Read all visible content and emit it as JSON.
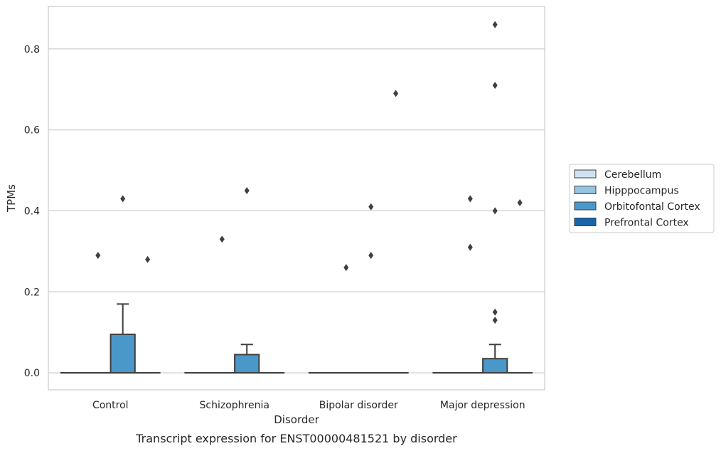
{
  "chart_data": {
    "type": "box",
    "title": "",
    "caption": "Transcript expression for ENST00000481521 by disorder",
    "xlabel": "Disorder",
    "ylabel": "TPMs",
    "ylim": [
      -0.042,
      0.905
    ],
    "yticks": [
      0.0,
      0.2,
      0.4,
      0.6,
      0.8
    ],
    "ytick_labels": [
      "0.0",
      "0.2",
      "0.4",
      "0.6",
      "0.8"
    ],
    "grid": "horizontal",
    "legend_position": "right",
    "categories": [
      "Control",
      "Schizophrenia",
      "Bipolar disorder",
      "Major depression"
    ],
    "series": [
      {
        "name": "Cerebellum",
        "color": "#d0e1f2",
        "boxes": [
          {
            "q1": 0,
            "median": 0,
            "q3": 0,
            "whislo": 0,
            "whishi": 0,
            "fliers": []
          },
          {
            "q1": 0,
            "median": 0,
            "q3": 0,
            "whislo": 0,
            "whishi": 0,
            "fliers": []
          },
          {
            "q1": 0,
            "median": 0,
            "q3": 0,
            "whislo": 0,
            "whishi": 0,
            "fliers": []
          },
          {
            "q1": 0,
            "median": 0,
            "q3": 0,
            "whislo": 0,
            "whishi": 0,
            "fliers": []
          }
        ]
      },
      {
        "name": "Hipppocampus",
        "color": "#94c4df",
        "boxes": [
          {
            "q1": 0,
            "median": 0,
            "q3": 0,
            "whislo": 0,
            "whishi": 0,
            "fliers": [
              0.29
            ]
          },
          {
            "q1": 0,
            "median": 0,
            "q3": 0,
            "whislo": 0,
            "whishi": 0,
            "fliers": [
              0.33
            ]
          },
          {
            "q1": 0,
            "median": 0,
            "q3": 0,
            "whislo": 0,
            "whishi": 0,
            "fliers": [
              0.26
            ]
          },
          {
            "q1": 0,
            "median": 0,
            "q3": 0,
            "whislo": 0,
            "whishi": 0,
            "fliers": [
              0.31,
              0.43
            ]
          }
        ]
      },
      {
        "name": "Orbitofontal Cortex",
        "color": "#4a98c9",
        "boxes": [
          {
            "q1": 0,
            "median": 0,
            "q3": 0.095,
            "whislo": 0,
            "whishi": 0.17,
            "fliers": [
              0.43
            ]
          },
          {
            "q1": 0,
            "median": 0,
            "q3": 0.045,
            "whislo": 0,
            "whishi": 0.07,
            "fliers": [
              0.45
            ]
          },
          {
            "q1": 0,
            "median": 0,
            "q3": 0,
            "whislo": 0,
            "whishi": 0,
            "fliers": [
              0.29,
              0.41
            ]
          },
          {
            "q1": 0,
            "median": 0,
            "q3": 0.035,
            "whislo": 0,
            "whishi": 0.07,
            "fliers": [
              0.13,
              0.15,
              0.4,
              0.71,
              0.86
            ]
          }
        ]
      },
      {
        "name": "Prefrontal Cortex",
        "color": "#1764ab",
        "boxes": [
          {
            "q1": 0,
            "median": 0,
            "q3": 0,
            "whislo": 0,
            "whishi": 0,
            "fliers": [
              0.28
            ]
          },
          {
            "q1": 0,
            "median": 0,
            "q3": 0,
            "whislo": 0,
            "whishi": 0,
            "fliers": []
          },
          {
            "q1": 0,
            "median": 0,
            "q3": 0,
            "whislo": 0,
            "whishi": 0,
            "fliers": [
              0.69
            ]
          },
          {
            "q1": 0,
            "median": 0,
            "q3": 0,
            "whislo": 0,
            "whishi": 0,
            "fliers": [
              0.42
            ]
          }
        ]
      }
    ]
  }
}
